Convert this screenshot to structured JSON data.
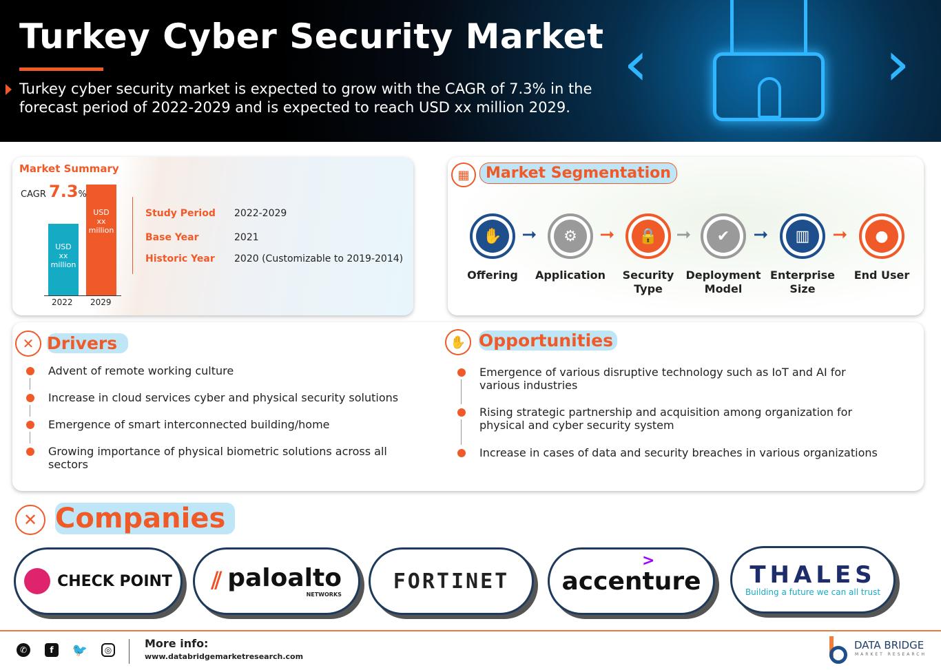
{
  "header": {
    "title": "Turkey Cyber Security Market",
    "subtitle": "Turkey cyber security market is expected to grow with the CAGR of 7.3% in the forecast period of 2022-2029 and is expected to reach USD xx million 2029."
  },
  "summary": {
    "heading": "Market Summary",
    "cagr_label": "CAGR",
    "cagr_value": "7.3",
    "cagr_unit": "%",
    "bars": [
      {
        "year": "2022",
        "label_lines": [
          "USD",
          "xx",
          "million"
        ],
        "color": "#16abc4"
      },
      {
        "year": "2029",
        "label_lines": [
          "USD",
          "xx",
          "million"
        ],
        "color": "#f05a28"
      }
    ],
    "facts": [
      {
        "label": "Study Period",
        "value": "2022-2029"
      },
      {
        "label": "Base Year",
        "value": "2021"
      },
      {
        "label": "Historic Year",
        "value": "2020 (Customizable to 2019-2014)"
      }
    ]
  },
  "segmentation": {
    "heading": "Market Segmentation",
    "items": [
      {
        "label": "Offering",
        "icon": "hand-person-icon",
        "color": "#1f4e8c"
      },
      {
        "label": "Application",
        "icon": "gear-icon",
        "color": "#9a9a9a"
      },
      {
        "label": "Security Type",
        "icon": "shield-lock-icon",
        "color": "#f05a28"
      },
      {
        "label": "Deployment Model",
        "icon": "laptop-check-icon",
        "color": "#9a9a9a"
      },
      {
        "label": "Enterprise Size",
        "icon": "buildings-icon",
        "color": "#1f4e8c"
      },
      {
        "label": "End User",
        "icon": "user-icon",
        "color": "#f05a28"
      }
    ],
    "arrow_colors": [
      "#1f4e8c",
      "#f05a28",
      "#9a9a9a",
      "#1f4e8c",
      "#f05a28"
    ]
  },
  "drivers": {
    "heading": "Drivers",
    "items": [
      "Advent of remote working culture",
      "Increase in cloud services cyber and physical security solutions",
      "Emergence of smart interconnected building/home",
      "Growing importance of physical biometric solutions across all sectors"
    ]
  },
  "opportunities": {
    "heading": "Opportunities",
    "items": [
      "Emergence of various disruptive technology such as IoT and AI for various industries",
      "Rising strategic partnership and acquisition among organization for physical and cyber security system",
      "Increase in cases of data and security breaches in various organizations"
    ]
  },
  "companies": {
    "heading": "Companies",
    "logos": [
      "CHECK POINT",
      "paloalto",
      "NETWORKS",
      "FORTINET",
      "accenture",
      "THALES",
      "Building a future we can all trust"
    ]
  },
  "footer": {
    "more_info": "More info:",
    "url": "www.databridgemarketresearch.com",
    "brand": "DATA BRIDGE",
    "brand_sub": "MARKET RESEARCH"
  },
  "colors": {
    "accent": "#f05a28",
    "teal": "#16abc4",
    "navy": "#1f4e8c",
    "highlight": "#bfe6f7"
  }
}
